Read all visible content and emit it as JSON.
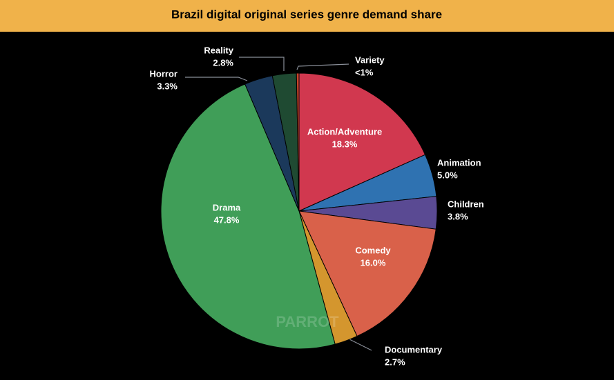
{
  "chart_data": {
    "type": "pie",
    "title": "Brazil digital original series genre demand share",
    "categories": [
      "Action/Adventure",
      "Animation",
      "Children",
      "Comedy",
      "Documentary",
      "Drama",
      "Horror",
      "Reality",
      "Variety"
    ],
    "values": [
      18.3,
      5.0,
      3.8,
      16.0,
      2.7,
      47.8,
      3.3,
      2.8,
      0.3
    ],
    "value_labels": [
      "18.3%",
      "5.0%",
      "3.8%",
      "16.0%",
      "2.7%",
      "47.8%",
      "3.3%",
      "2.8%",
      "<1%"
    ],
    "colors": [
      "#d1384f",
      "#2f72b1",
      "#5a4a93",
      "#d9614a",
      "#d4962e",
      "#409e58",
      "#1b395b",
      "#1f4a32",
      "#c8432b"
    ],
    "watermark": "PARROT"
  }
}
